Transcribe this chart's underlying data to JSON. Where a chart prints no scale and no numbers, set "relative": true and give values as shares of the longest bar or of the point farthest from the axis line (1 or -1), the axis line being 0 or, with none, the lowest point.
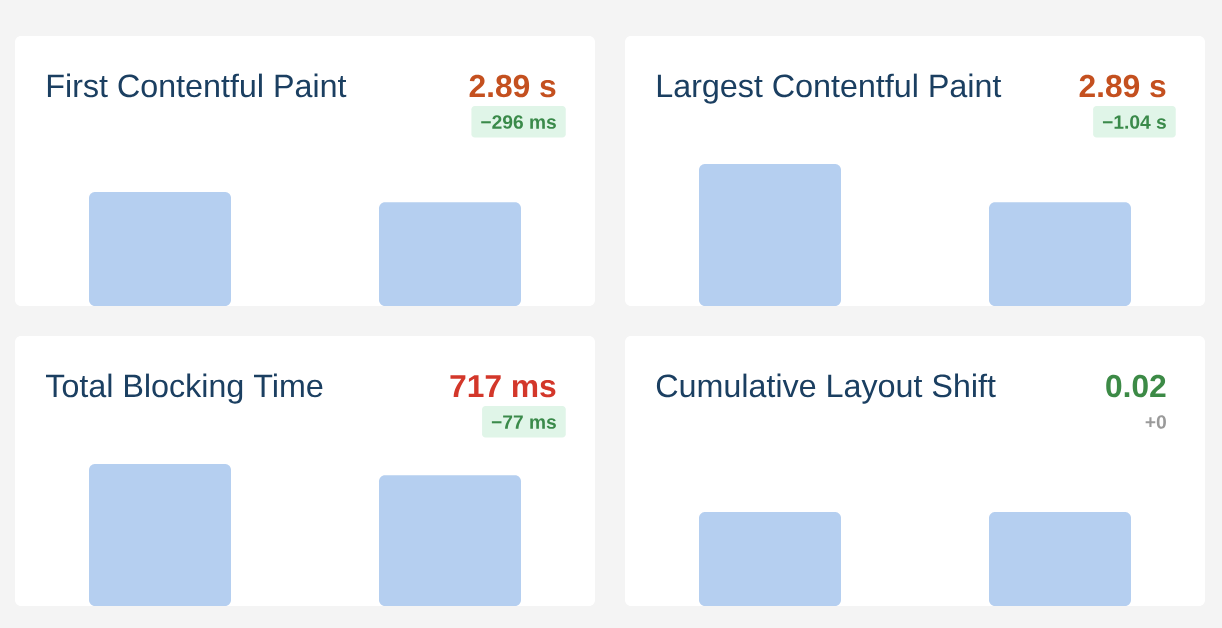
{
  "chart_data": [
    {
      "type": "bar",
      "title": "First Contentful Paint",
      "annotations": [
        "2.89 s",
        "−296 ms"
      ],
      "categories": [
        null,
        null
      ],
      "values": [
        1,
        0.91
      ],
      "color": "#b5cff0",
      "relative": true
    },
    {
      "type": "bar",
      "title": "Largest Contentful Paint",
      "annotations": [
        "2.89 s",
        "−1.04 s"
      ],
      "categories": [
        null,
        null
      ],
      "values": [
        1,
        0.73
      ],
      "color": "#b5cff0",
      "relative": true
    },
    {
      "type": "bar",
      "title": "Total Blocking Time",
      "annotations": [
        "717 ms",
        "−77 ms"
      ],
      "categories": [
        null,
        null
      ],
      "values": [
        1,
        0.92
      ],
      "color": "#b5cff0",
      "relative": true
    },
    {
      "type": "bar",
      "title": "Cumulative Layout Shift",
      "annotations": [
        "0.02",
        "+0"
      ],
      "categories": [
        null,
        null
      ],
      "values": [
        1,
        1
      ],
      "color": "#b5cff0",
      "relative": true
    }
  ]
}
